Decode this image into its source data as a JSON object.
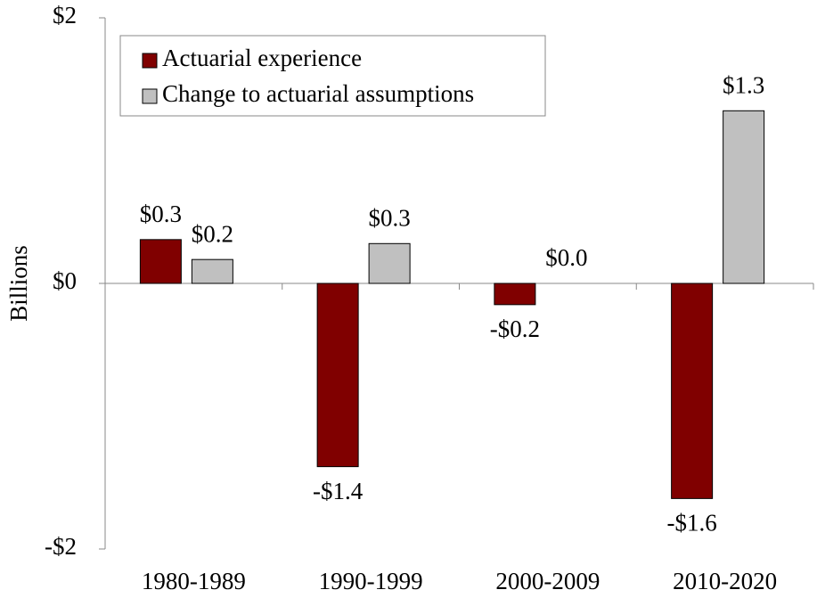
{
  "chart_data": {
    "type": "bar",
    "y_label": "Billions",
    "categories": [
      "1980-1989",
      "1990-1999",
      "2000-2009",
      "2010-2020"
    ],
    "series": [
      {
        "name": "Actuarial experience",
        "color": "#800000",
        "values": [
          0.33,
          -1.38,
          -0.16,
          -1.62
        ],
        "value_labels": [
          "$0.3",
          "-$1.4",
          "-$0.2",
          "-$1.6"
        ]
      },
      {
        "name": "Change to actuarial assumptions",
        "color": "#c0c0c0",
        "values": [
          0.18,
          0.3,
          0.0,
          1.3
        ],
        "value_labels": [
          "$0.2",
          "$0.3",
          "$0.0",
          "$1.3"
        ]
      }
    ],
    "ylim": [
      -2,
      2
    ],
    "yticks": [
      {
        "value": -2,
        "label": "-$2"
      },
      {
        "value": 0,
        "label": "$0"
      },
      {
        "value": 2,
        "label": "$2"
      }
    ],
    "grid": false,
    "legend": "top-left"
  }
}
